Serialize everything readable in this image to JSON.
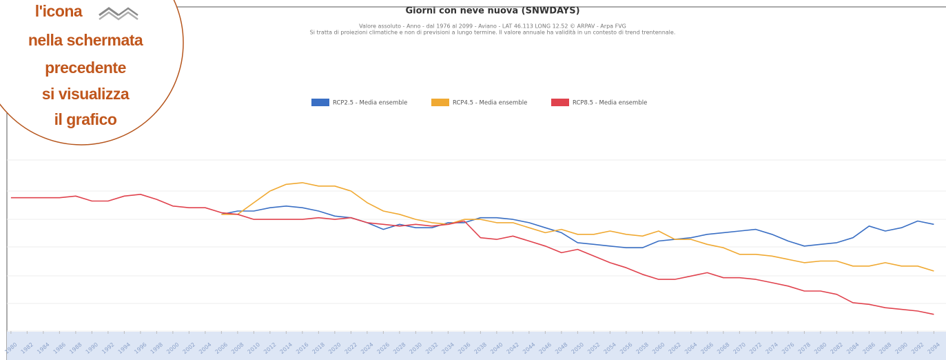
{
  "chart_data": {
    "type": "line",
    "title": "Giorni con neve nuova (SNWDAYS)",
    "subtitle": [
      "Valore assoluto  -  Anno  -  dal 1976 al 2099 - Aviano - LAT 46.113 LONG 12.52    © ARPAV - Arpa FVG",
      "Si tratta di proiezioni climatiche e non di previsioni a lungo termine. Il valore annuale ha validità in un contesto di trend trentennale."
    ],
    "x": [
      1980,
      1982,
      1984,
      1986,
      1988,
      1990,
      1992,
      1994,
      1996,
      1998,
      2000,
      2002,
      2004,
      2006,
      2008,
      2010,
      2012,
      2014,
      2016,
      2018,
      2020,
      2022,
      2024,
      2026,
      2028,
      2030,
      2032,
      2034,
      2036,
      2038,
      2040,
      2042,
      2044,
      2046,
      2048,
      2050,
      2052,
      2054,
      2056,
      2058,
      2060,
      2062,
      2064,
      2066,
      2068,
      2070,
      2072,
      2074,
      2076,
      2078,
      2080,
      2082,
      2084,
      2086,
      2088,
      2090,
      2092,
      2094
    ],
    "xticks": [
      1980,
      1982,
      1984,
      1986,
      1988,
      1990,
      1992,
      1994,
      1996,
      1998,
      2000,
      2002,
      2004,
      2006,
      2008,
      2010,
      2012,
      2014,
      2016,
      2018,
      2020,
      2022,
      2024,
      2026,
      2028,
      2030,
      2032,
      2034,
      2036,
      2038,
      2040,
      2042,
      2044,
      2046,
      2048,
      2050,
      2052,
      2054,
      2056,
      2058,
      2060,
      2062,
      2064,
      2066,
      2068,
      2070,
      2072,
      2074,
      2076,
      2078,
      2080,
      2082,
      2084,
      2086,
      2088,
      2090,
      2092,
      2094
    ],
    "xlim": [
      1979.5,
      2095.5
    ],
    "ylim": [
      0,
      12
    ],
    "series": [
      {
        "name": "RCP2.5 - Media ensemble",
        "color": "#3a6fc4",
        "values": [
          null,
          null,
          null,
          null,
          null,
          null,
          null,
          null,
          null,
          null,
          null,
          null,
          null,
          7.0,
          7.2,
          7.2,
          7.4,
          7.5,
          7.4,
          7.2,
          6.9,
          6.8,
          6.5,
          6.1,
          6.4,
          6.2,
          6.2,
          6.5,
          6.5,
          6.8,
          6.8,
          6.7,
          6.5,
          6.2,
          5.9,
          5.3,
          5.2,
          5.1,
          5.0,
          5.0,
          5.4,
          5.5,
          5.6,
          5.8,
          5.9,
          6.0,
          6.1,
          5.8,
          5.4,
          5.1,
          5.2,
          5.3,
          5.6,
          6.3,
          6.0,
          6.2,
          6.6,
          6.4
        ]
      },
      {
        "name": "RCP4.5 - Media ensemble",
        "color": "#f0a932",
        "values": [
          null,
          null,
          null,
          null,
          null,
          null,
          null,
          null,
          null,
          null,
          null,
          null,
          null,
          7.0,
          7.0,
          7.7,
          8.4,
          8.8,
          8.9,
          8.7,
          8.7,
          8.4,
          7.7,
          7.2,
          7.0,
          6.7,
          6.5,
          6.4,
          6.7,
          6.7,
          6.5,
          6.5,
          6.2,
          5.9,
          6.1,
          5.8,
          5.8,
          6.0,
          5.8,
          5.7,
          6.0,
          5.5,
          5.5,
          5.2,
          5.0,
          4.6,
          4.6,
          4.5,
          4.3,
          4.1,
          4.2,
          4.2,
          3.9,
          3.9,
          4.1,
          3.9,
          3.9,
          3.6
        ]
      },
      {
        "name": "RCP8.5 - Media ensemble",
        "color": "#e0424d",
        "values": [
          8.0,
          8.0,
          8.0,
          8.0,
          8.1,
          7.8,
          7.8,
          8.1,
          8.2,
          7.9,
          7.5,
          7.4,
          7.4,
          7.1,
          7.0,
          6.7,
          6.7,
          6.7,
          6.7,
          6.8,
          6.7,
          6.8,
          6.5,
          6.4,
          6.3,
          6.4,
          6.3,
          6.4,
          6.6,
          5.6,
          5.5,
          5.7,
          5.4,
          5.1,
          4.7,
          4.9,
          4.5,
          4.1,
          3.8,
          3.4,
          3.1,
          3.1,
          3.3,
          3.5,
          3.2,
          3.2,
          3.1,
          2.9,
          2.7,
          2.4,
          2.4,
          2.2,
          1.7,
          1.6,
          1.4,
          1.3,
          1.2,
          1.0
        ]
      }
    ]
  },
  "callout": {
    "lines": [
      "l'icona",
      "nella schermata",
      "precedente",
      "si visualizza",
      "il grafico"
    ]
  }
}
